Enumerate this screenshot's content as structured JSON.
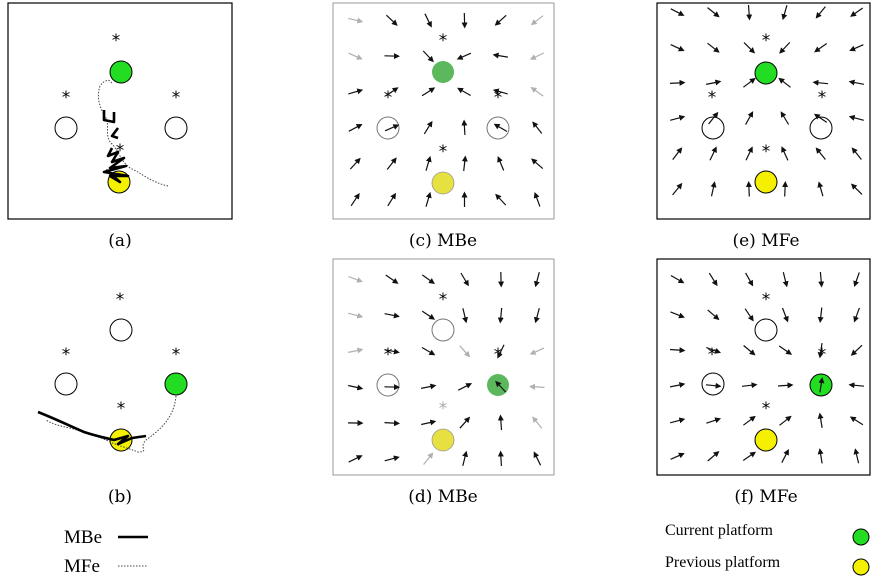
{
  "panels": [
    {
      "id": "a",
      "caption": "(a)",
      "kind": "trajectory",
      "current": "top",
      "previous": "bottom",
      "frame": "#000000"
    },
    {
      "id": "b",
      "caption": "(b)",
      "kind": "trajectory",
      "current": "right",
      "previous": "bottom",
      "frame": "#000000"
    },
    {
      "id": "c",
      "caption": "(c) MBe",
      "kind": "field",
      "current": "top",
      "previous": "bottom",
      "frame": "#9a9a9a"
    },
    {
      "id": "d",
      "caption": "(d) MBe",
      "kind": "field",
      "current": "right",
      "previous": "bottom",
      "frame": "#9a9a9a"
    },
    {
      "id": "e",
      "caption": "(e) MFe",
      "kind": "field",
      "current": "top",
      "previous": "bottom",
      "frame": "#000000"
    },
    {
      "id": "f",
      "caption": "(f) MFe",
      "kind": "field",
      "current": "right",
      "previous": "bottom",
      "frame": "#000000"
    }
  ],
  "legend_lines": [
    {
      "label": "MBe",
      "style": "solid"
    },
    {
      "label": "MFe",
      "style": "dotted"
    }
  ],
  "legend_platforms": [
    {
      "label": "Current platform",
      "color": "#22dd22"
    },
    {
      "label": "Previous platform",
      "color": "#f5f000"
    }
  ],
  "marker_glyph": "*",
  "colors": {
    "current_platform": "#22dd22",
    "current_platform_mbe": "#5cb85c",
    "previous_platform": "#f5f000",
    "previous_platform_mbe": "#e6e040",
    "arrow_dark": "#111111",
    "arrow_faded": "#b0b0b0"
  }
}
